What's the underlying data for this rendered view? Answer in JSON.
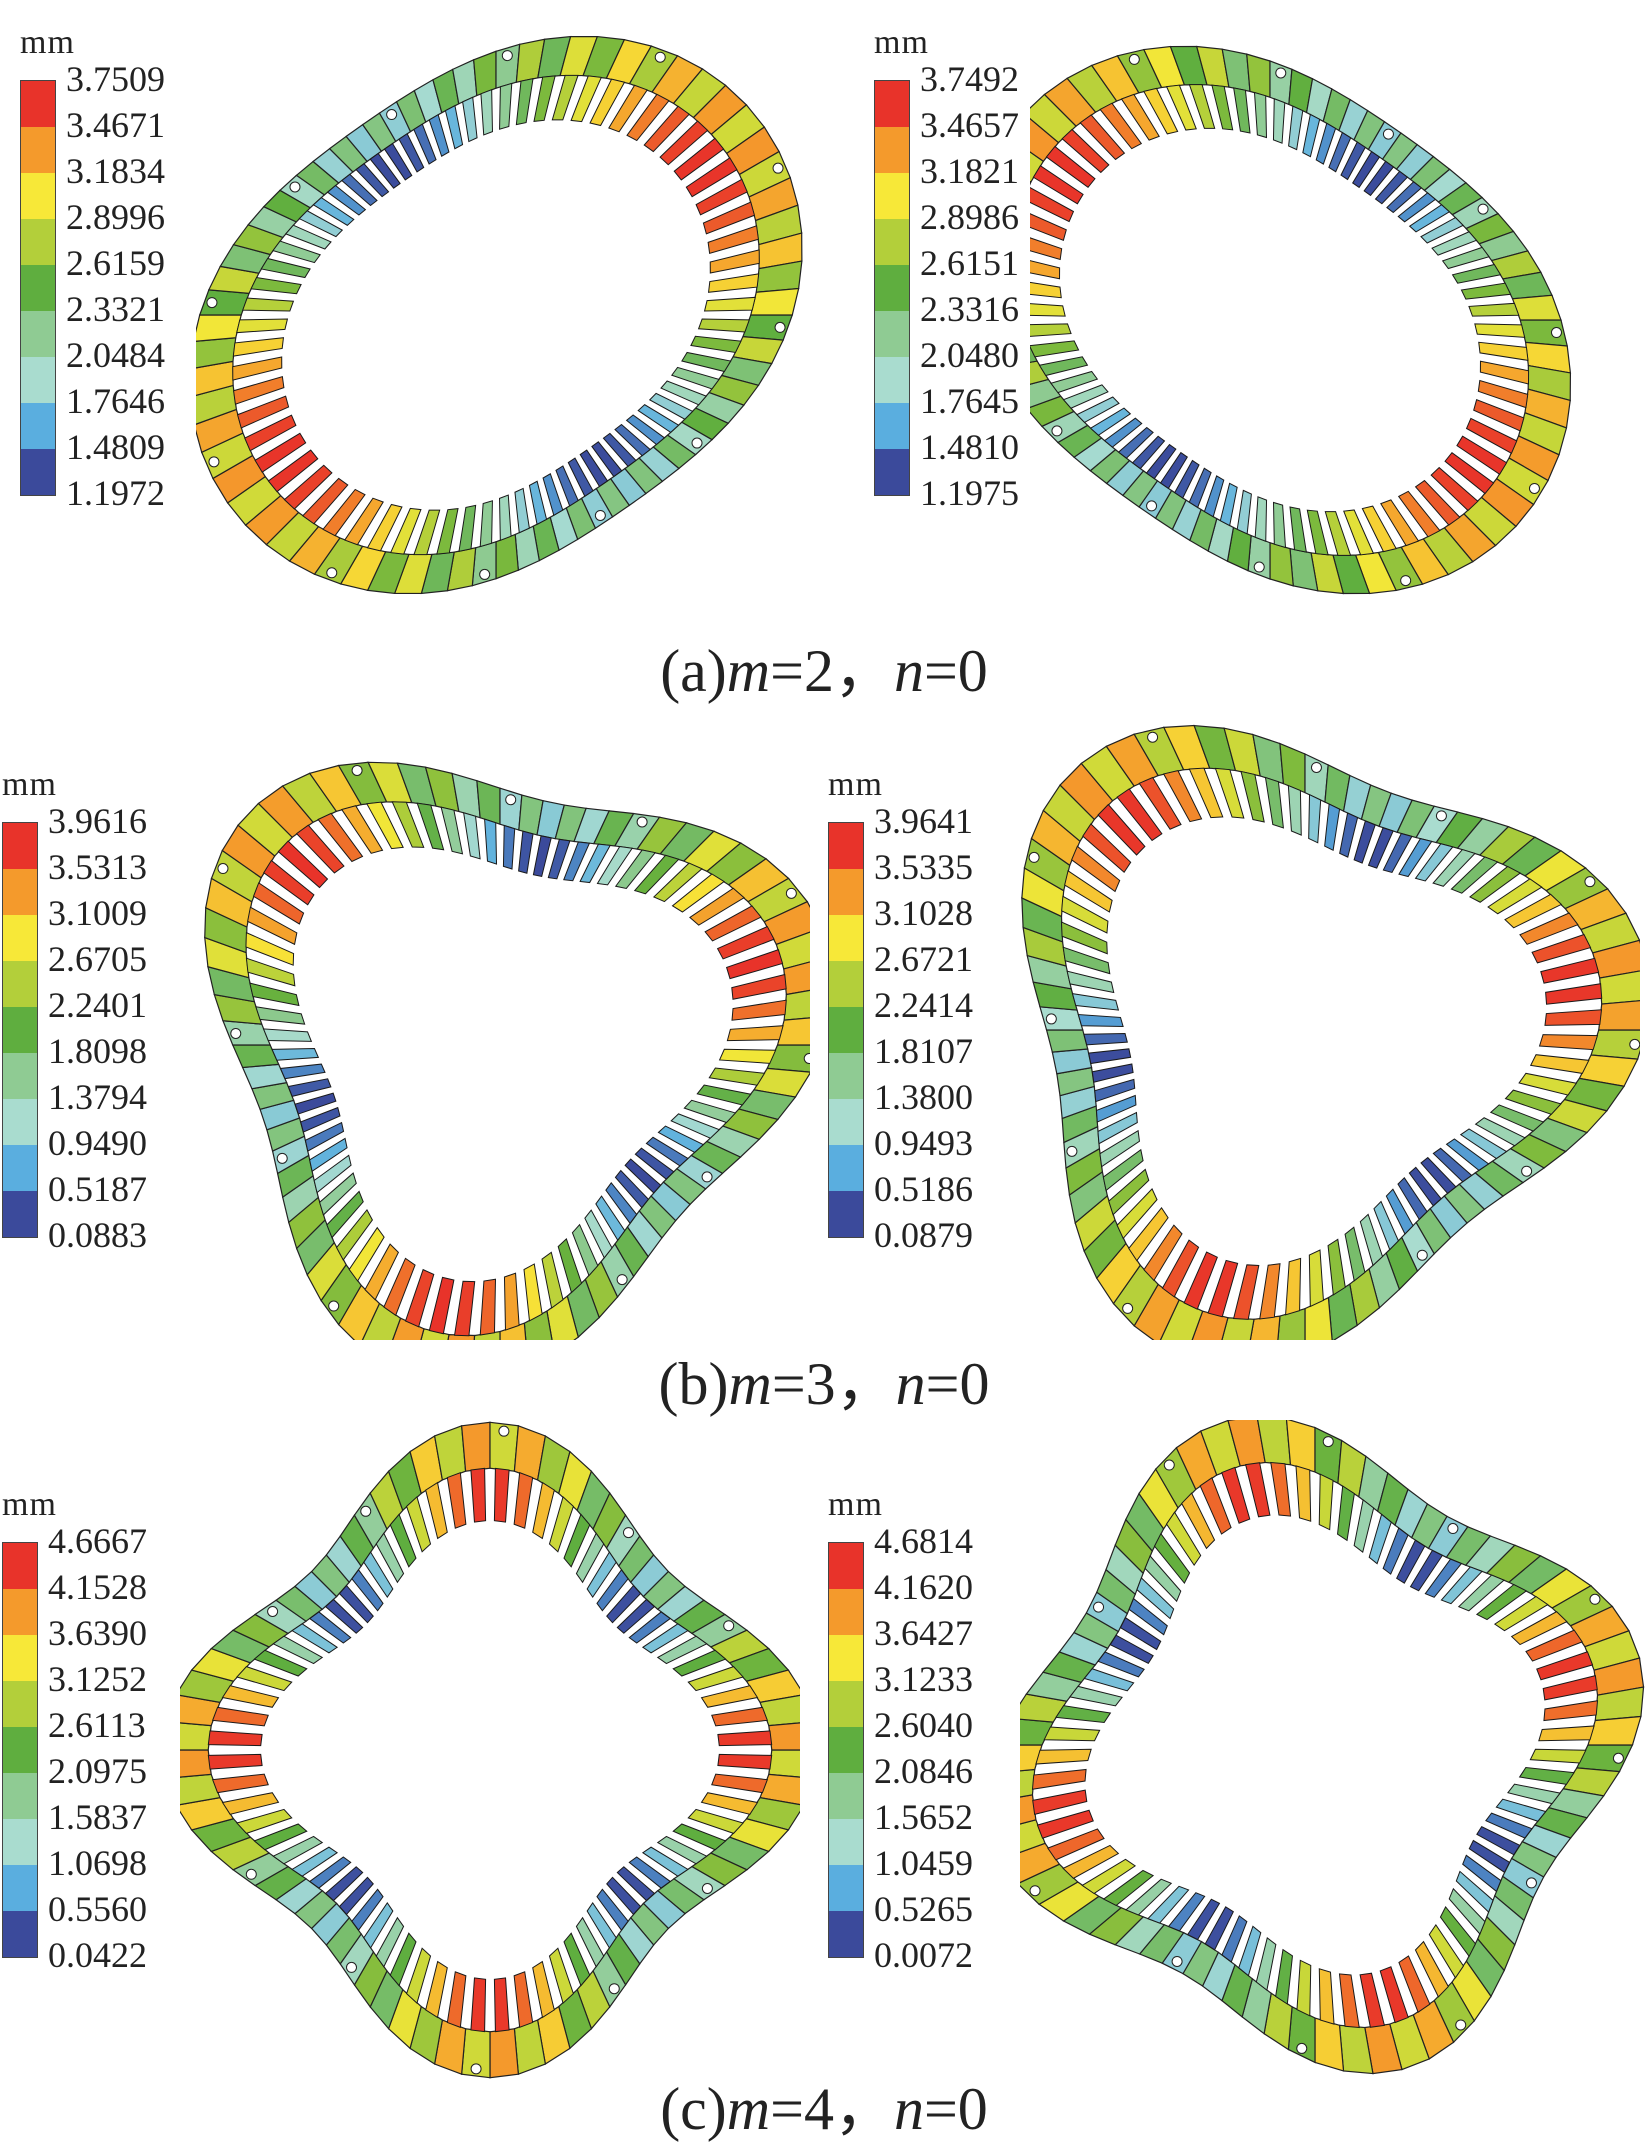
{
  "unit": "mm",
  "colors": [
    "#e8332a",
    "#f49a2c",
    "#f7e838",
    "#b3cf3a",
    "#5fae3f",
    "#8fcb93",
    "#a9dccf",
    "#5aaedf",
    "#3b4a9b"
  ],
  "rows": [
    {
      "caption": {
        "prefix": "(a)",
        "m_sym": "m",
        "m_val": "=2，",
        "n_sym": "n",
        "n_val": "=0"
      },
      "legends": [
        {
          "ticks": [
            "3.7509",
            "3.4671",
            "3.1834",
            "2.8996",
            "2.6159",
            "2.3321",
            "2.0484",
            "1.7646",
            "1.4809",
            "1.1972"
          ]
        },
        {
          "ticks": [
            "3.7492",
            "3.4657",
            "3.1821",
            "2.8986",
            "2.6151",
            "2.3316",
            "2.0480",
            "1.7645",
            "1.4810",
            "1.1975"
          ]
        }
      ]
    },
    {
      "caption": {
        "prefix": "(b)",
        "m_sym": "m",
        "m_val": "=3，",
        "n_sym": "n",
        "n_val": "=0"
      },
      "legends": [
        {
          "ticks": [
            "3.9616",
            "3.5313",
            "3.1009",
            "2.6705",
            "2.2401",
            "1.8098",
            "1.3794",
            "0.9490",
            "0.5187",
            "0.0883"
          ]
        },
        {
          "ticks": [
            "3.9641",
            "3.5335",
            "3.1028",
            "2.6721",
            "2.2414",
            "1.8107",
            "1.3800",
            "0.9493",
            "0.5186",
            "0.0879"
          ]
        }
      ]
    },
    {
      "caption": {
        "prefix": "(c)",
        "m_sym": "m",
        "m_val": "=4，",
        "n_sym": "n",
        "n_val": "=0"
      },
      "legends": [
        {
          "ticks": [
            "4.6667",
            "4.1528",
            "3.6390",
            "3.1252",
            "2.6113",
            "2.0975",
            "1.5837",
            "1.0698",
            "0.5560",
            "0.0422"
          ]
        },
        {
          "ticks": [
            "4.6814",
            "4.1620",
            "3.6427",
            "3.1233",
            "2.6040",
            "2.0846",
            "1.5652",
            "1.0459",
            "0.5265",
            "0.0072"
          ]
        }
      ]
    }
  ]
}
